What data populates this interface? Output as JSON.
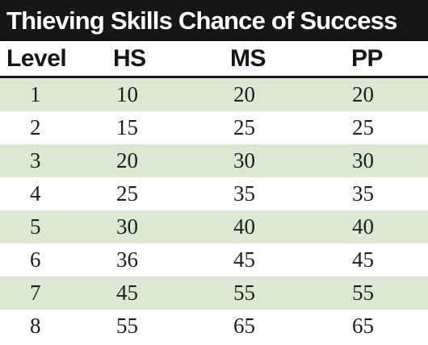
{
  "title": "Thieving Skills Chance of Success",
  "headers": {
    "level": "Level",
    "hs": "HS",
    "ms": "MS",
    "pp": "PP"
  },
  "rows": [
    {
      "level": "1",
      "hs": "10",
      "ms": "20",
      "pp": "20"
    },
    {
      "level": "2",
      "hs": "15",
      "ms": "25",
      "pp": "25"
    },
    {
      "level": "3",
      "hs": "20",
      "ms": "30",
      "pp": "30"
    },
    {
      "level": "4",
      "hs": "25",
      "ms": "35",
      "pp": "35"
    },
    {
      "level": "5",
      "hs": "30",
      "ms": "40",
      "pp": "40"
    },
    {
      "level": "6",
      "hs": "36",
      "ms": "45",
      "pp": "45"
    },
    {
      "level": "7",
      "hs": "45",
      "ms": "55",
      "pp": "55"
    },
    {
      "level": "8",
      "hs": "55",
      "ms": "65",
      "pp": "65"
    }
  ],
  "colors": {
    "title_background": "#161616",
    "title_text": "#ffffff",
    "row_shade": "#dbe9d2"
  }
}
